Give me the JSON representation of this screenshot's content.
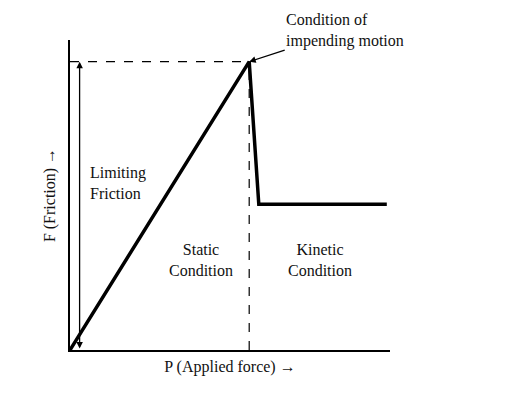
{
  "chart_data": {
    "type": "line",
    "x_label": "P (Applied force) →",
    "y_label": "F (Friction) →",
    "x": [
      0,
      5.6,
      5.9,
      9.9
    ],
    "values": [
      0,
      9.3,
      4.7,
      4.7
    ],
    "color": "#000000",
    "xlim": [
      0,
      10
    ],
    "ylim": [
      0,
      10
    ],
    "grid": false,
    "tick_labels": false,
    "annotations": {
      "peak": [
        "Condition of",
        "impending motion"
      ],
      "limit": [
        "Limiting",
        "Friction"
      ],
      "static": [
        "Static",
        "Condition"
      ],
      "kinetic": [
        "Kinetic",
        "Condition"
      ]
    }
  }
}
